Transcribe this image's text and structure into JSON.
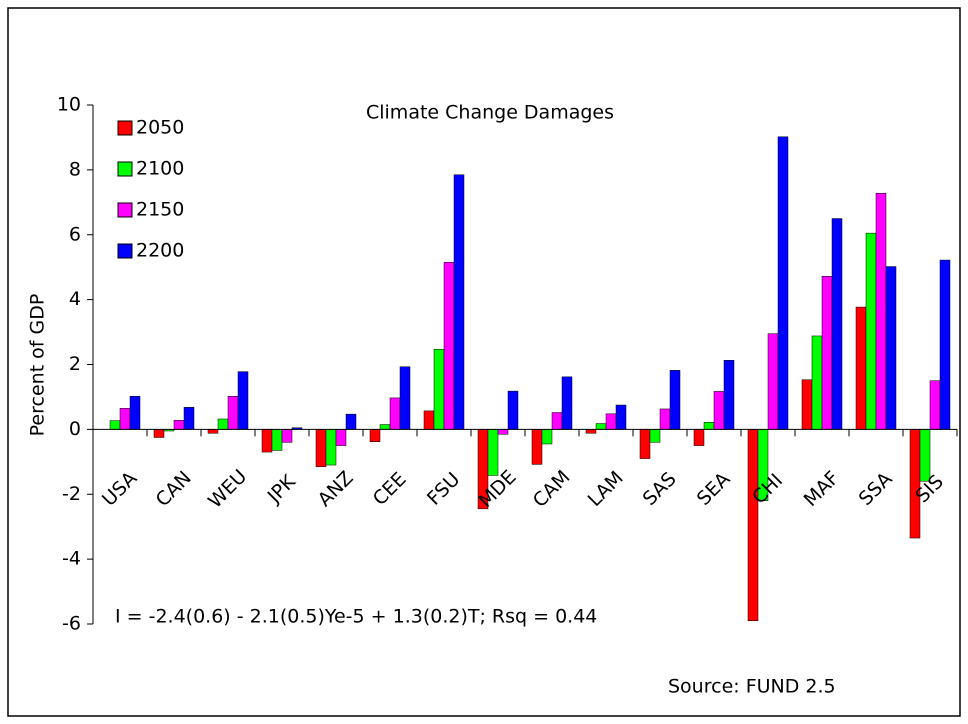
{
  "chart_data": {
    "type": "bar",
    "title": "Climate Change Damages",
    "y_label": "Percent of GDP",
    "annotations": [
      "I = -2.4(0.6) - 2.1(0.5)Ye-5 + 1.3(0.2)T; Rsq = 0.44",
      "Source: FUND 2.5"
    ],
    "categories": [
      "USA",
      "CAN",
      "WEU",
      "JPK",
      "ANZ",
      "CEE",
      "FSU",
      "MDE",
      "CAM",
      "LAM",
      "SAS",
      "SEA",
      "CHI",
      "MAF",
      "SSA",
      "SIS"
    ],
    "series": [
      {
        "name": "2050",
        "color": "#ff0000",
        "values": [
          0,
          -0.25,
          -0.12,
          -0.7,
          -1.15,
          -0.38,
          0.57,
          -2.45,
          -1.08,
          -0.12,
          -0.9,
          -0.5,
          -5.9,
          1.53,
          3.77,
          -3.35
        ]
      },
      {
        "name": "2100",
        "color": "#00ff00",
        "values": [
          0.27,
          -0.05,
          0.32,
          -0.65,
          -1.1,
          0.15,
          2.47,
          -1.42,
          -0.45,
          0.18,
          -0.4,
          0.22,
          -2.2,
          2.88,
          6.05,
          -1.6
        ]
      },
      {
        "name": "2150",
        "color": "#ff00ff",
        "values": [
          0.65,
          0.28,
          1.02,
          -0.4,
          -0.5,
          0.97,
          5.15,
          -0.15,
          0.52,
          0.48,
          0.63,
          1.17,
          2.95,
          4.72,
          7.28,
          1.5
        ]
      },
      {
        "name": "2200",
        "color": "#0000ff",
        "values": [
          1.02,
          0.68,
          1.78,
          0.05,
          0.47,
          1.93,
          7.85,
          1.18,
          1.62,
          0.75,
          1.82,
          2.13,
          9.02,
          6.5,
          5.02,
          5.22
        ]
      }
    ],
    "ylim": [
      -6,
      10
    ],
    "yticks": [
      -6,
      -4,
      -2,
      0,
      2,
      4,
      6,
      8,
      10
    ],
    "legend": "upper left"
  }
}
